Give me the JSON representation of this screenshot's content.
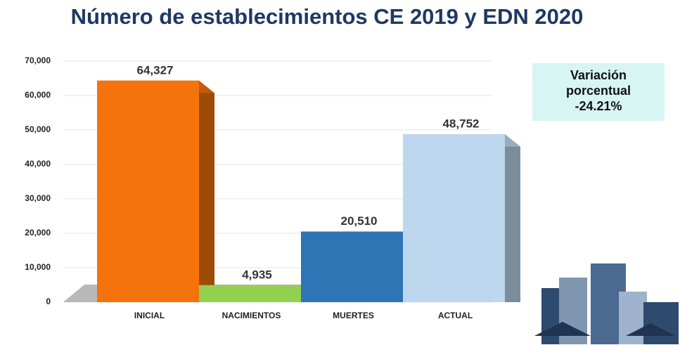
{
  "chart_data": {
    "type": "bar",
    "title": "Número de establecimientos CE 2019 y EDN 2020",
    "categories": [
      "INICIAL",
      "NACIMIENTOS",
      "MUERTES",
      "ACTUAL"
    ],
    "values": [
      64327,
      4935,
      20510,
      48752
    ],
    "value_labels": [
      "64,327",
      "4,935",
      "20,510",
      "48,752"
    ],
    "colors": [
      "#f5730c",
      "#92d050",
      "#2e75b6",
      "#bdd7ee"
    ],
    "ylim": [
      0,
      70000
    ],
    "yticks": [
      0,
      {
        "value": 10000,
        "label": "10,000"
      },
      {
        "value": 20000,
        "label": "20,000"
      },
      {
        "value": 30000,
        "label": "30,000"
      },
      {
        "value": 40000,
        "label": "40,000"
      },
      {
        "value": 50000,
        "label": "50,000"
      },
      {
        "value": 60000,
        "label": "60,000"
      },
      {
        "value": 70000,
        "label": "70,000"
      }
    ],
    "grid": true,
    "annotation": {
      "label": "Variación porcentual",
      "value": "-24.21%"
    }
  }
}
